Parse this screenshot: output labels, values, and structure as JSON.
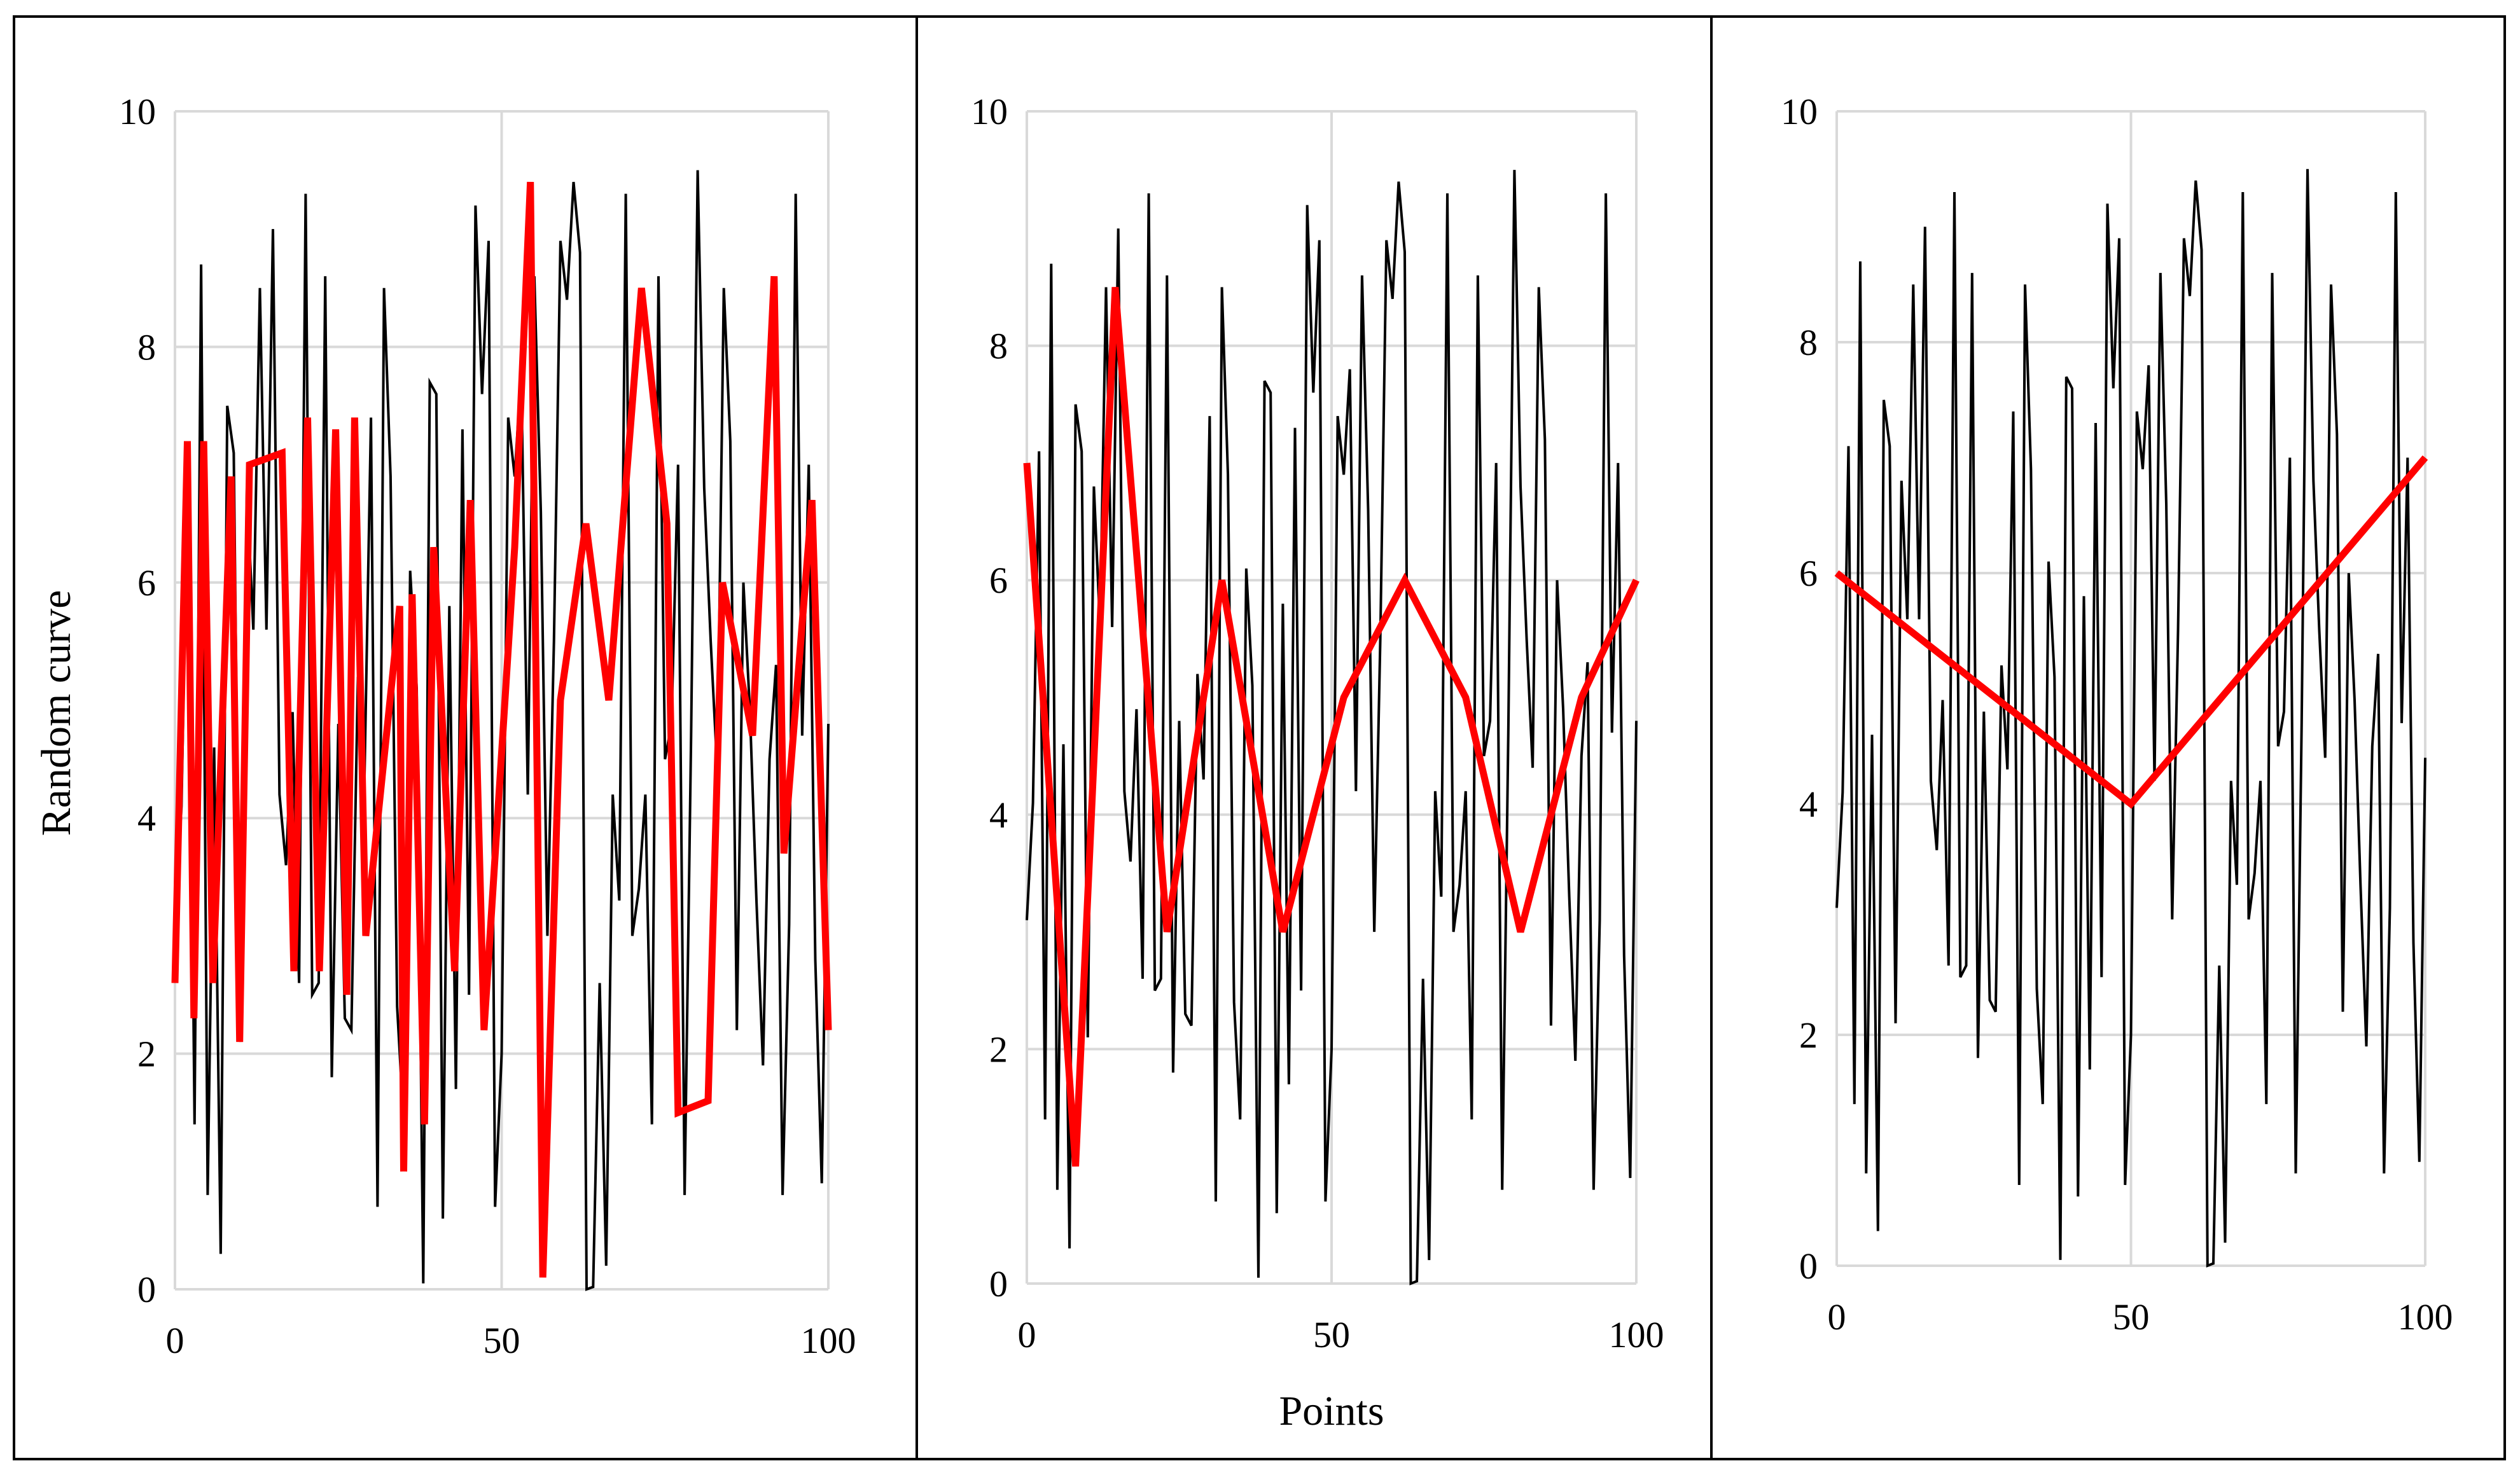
{
  "chart_data": [
    {
      "type": "line",
      "xlabel": "",
      "ylabel": "Random curve",
      "xlim": [
        0,
        100
      ],
      "ylim": [
        0,
        10
      ],
      "x_ticks": [
        "0",
        "50",
        "100"
      ],
      "y_ticks": [
        "0",
        "2",
        "4",
        "6",
        "8",
        "10"
      ],
      "grid": true,
      "series": [
        {
          "color": "#000000",
          "x": [
            0,
            1,
            2,
            3,
            4,
            5,
            6,
            7,
            8,
            9,
            10,
            11,
            12,
            13,
            14,
            15,
            16,
            17,
            18,
            19,
            20,
            21,
            22,
            23,
            24,
            25,
            26,
            27,
            28,
            29,
            30,
            31,
            32,
            33,
            34,
            35,
            36,
            37,
            38,
            39,
            40,
            41,
            42,
            43,
            44,
            45,
            46,
            47,
            48,
            49,
            50,
            51,
            52,
            53,
            54,
            55,
            56,
            57,
            58,
            59,
            60,
            61,
            62,
            63,
            64,
            65,
            66,
            67,
            68,
            69,
            70,
            71,
            72,
            73,
            74,
            75,
            76,
            77,
            78,
            79,
            80,
            81,
            82,
            83,
            84,
            85,
            86,
            87,
            88,
            89,
            90,
            91,
            92,
            93,
            94,
            95,
            96,
            97,
            98,
            99,
            100
          ],
          "values": [
            3.1,
            4.1,
            7.1,
            1.4,
            8.7,
            0.8,
            4.6,
            0.3,
            7.5,
            7.1,
            2.1,
            6.8,
            5.6,
            8.5,
            5.6,
            9.0,
            4.2,
            3.6,
            4.9,
            2.6,
            9.3,
            2.5,
            2.6,
            8.6,
            1.8,
            4.8,
            2.3,
            2.2,
            5.2,
            4.3,
            7.4,
            0.7,
            8.5,
            6.9,
            2.4,
            1.4,
            6.1,
            5.1,
            0.05,
            7.7,
            7.6,
            0.6,
            5.8,
            1.7,
            7.3,
            2.5,
            9.2,
            7.6,
            8.9,
            0.7,
            2.0,
            7.4,
            6.9,
            7.8,
            4.2,
            8.6,
            6.6,
            3.0,
            5.5,
            8.9,
            8.4,
            9.4,
            8.8,
            0.0,
            0.02,
            2.6,
            0.2,
            4.2,
            3.3,
            9.3,
            3.0,
            3.4,
            4.2,
            1.4,
            8.6,
            4.5,
            4.8,
            7.0,
            0.8,
            4.7,
            9.5,
            6.8,
            5.5,
            4.4,
            8.5,
            7.2,
            2.2,
            6.0,
            4.9,
            3.3,
            1.9,
            4.5,
            5.3,
            0.8,
            3.1,
            9.3,
            4.7,
            7.0,
            2.8,
            0.9,
            4.8
          ],
          "x_note": "",
          "y_note": ""
        },
        {
          "color": "#ff0000",
          "x": [
            0,
            1.9,
            2.9,
            4.4,
            5.8,
            8.6,
            9.9,
            11.4,
            16.4,
            18.2,
            20.3,
            22.1,
            24.6,
            26.3,
            27.5,
            29.2,
            34.4,
            35.0,
            36.3,
            38.2,
            39.6,
            42.8,
            45.2,
            47.3,
            52.0,
            54.4,
            56.3,
            59.0,
            62.9,
            66.4,
            71.4,
            75.3,
            77.0,
            81.6,
            83.8,
            88.4,
            91.7,
            93.2,
            97.5,
            100
          ],
          "values": [
            2.6,
            7.2,
            2.3,
            7.2,
            2.6,
            6.9,
            2.1,
            7.0,
            7.1,
            2.7,
            7.4,
            2.7,
            7.3,
            2.5,
            7.4,
            3.0,
            5.8,
            1.0,
            5.9,
            1.4,
            6.3,
            2.7,
            6.7,
            2.2,
            6.3,
            9.4,
            0.1,
            5.0,
            6.5,
            5.0,
            8.5,
            6.5,
            1.5,
            1.6,
            6.0,
            4.7,
            8.6,
            3.7,
            6.7,
            2.2
          ]
        }
      ]
    },
    {
      "type": "line",
      "xlabel": "Points",
      "ylabel": "",
      "xlim": [
        0,
        100
      ],
      "ylim": [
        0,
        10
      ],
      "x_ticks": [
        "0",
        "50",
        "100"
      ],
      "y_ticks": [
        "0",
        "2",
        "4",
        "6",
        "8",
        "10"
      ],
      "grid": true,
      "series": [
        {
          "color": "#000000",
          "same_as": "panel-1-black",
          "x": [
            0,
            1,
            2,
            3,
            4,
            5,
            6,
            7,
            8,
            9,
            10,
            11,
            12,
            13,
            14,
            15,
            16,
            17,
            18,
            19,
            20,
            21,
            22,
            23,
            24,
            25,
            26,
            27,
            28,
            29,
            30,
            31,
            32,
            33,
            34,
            35,
            36,
            37,
            38,
            39,
            40,
            41,
            42,
            43,
            44,
            45,
            46,
            47,
            48,
            49,
            50,
            51,
            52,
            53,
            54,
            55,
            56,
            57,
            58,
            59,
            60,
            61,
            62,
            63,
            64,
            65,
            66,
            67,
            68,
            69,
            70,
            71,
            72,
            73,
            74,
            75,
            76,
            77,
            78,
            79,
            80,
            81,
            82,
            83,
            84,
            85,
            86,
            87,
            88,
            89,
            90,
            91,
            92,
            93,
            94,
            95,
            96,
            97,
            98,
            99,
            100
          ],
          "values": [
            3.1,
            4.1,
            7.1,
            1.4,
            8.7,
            0.8,
            4.6,
            0.3,
            7.5,
            7.1,
            2.1,
            6.8,
            5.6,
            8.5,
            5.6,
            9.0,
            4.2,
            3.6,
            4.9,
            2.6,
            9.3,
            2.5,
            2.6,
            8.6,
            1.8,
            4.8,
            2.3,
            2.2,
            5.2,
            4.3,
            7.4,
            0.7,
            8.5,
            6.9,
            2.4,
            1.4,
            6.1,
            5.1,
            0.05,
            7.7,
            7.6,
            0.6,
            5.8,
            1.7,
            7.3,
            2.5,
            9.2,
            7.6,
            8.9,
            0.7,
            2.0,
            7.4,
            6.9,
            7.8,
            4.2,
            8.6,
            6.6,
            3.0,
            5.5,
            8.9,
            8.4,
            9.4,
            8.8,
            0.0,
            0.02,
            2.6,
            0.2,
            4.2,
            3.3,
            9.3,
            3.0,
            3.4,
            4.2,
            1.4,
            8.6,
            4.5,
            4.8,
            7.0,
            0.8,
            4.7,
            9.5,
            6.8,
            5.5,
            4.4,
            8.5,
            7.2,
            2.2,
            6.0,
            4.9,
            3.3,
            1.9,
            4.5,
            5.3,
            0.8,
            3.1,
            9.3,
            4.7,
            7.0,
            2.8,
            0.9,
            4.8
          ]
        },
        {
          "color": "#ff0000",
          "x": [
            0,
            8,
            14.5,
            23,
            32,
            42,
            52,
            62,
            72,
            81,
            91,
            100
          ],
          "values": [
            7.0,
            1.0,
            8.5,
            3.0,
            6.0,
            3.0,
            5.0,
            6.0,
            5.0,
            3.0,
            5.0,
            6.0
          ]
        }
      ]
    },
    {
      "type": "line",
      "xlabel": "",
      "ylabel": "",
      "xlim": [
        0,
        100
      ],
      "ylim": [
        0,
        10
      ],
      "x_ticks": [
        "0",
        "50",
        "100"
      ],
      "y_ticks": [
        "0",
        "2",
        "4",
        "6",
        "8",
        "10"
      ],
      "grid": true,
      "series": [
        {
          "color": "#000000",
          "x": [
            0,
            1,
            2,
            3,
            4,
            5,
            6,
            7,
            8,
            9,
            10,
            11,
            12,
            13,
            14,
            15,
            16,
            17,
            18,
            19,
            20,
            21,
            22,
            23,
            24,
            25,
            26,
            27,
            28,
            29,
            30,
            31,
            32,
            33,
            34,
            35,
            36,
            37,
            38,
            39,
            40,
            41,
            42,
            43,
            44,
            45,
            46,
            47,
            48,
            49,
            50,
            51,
            52,
            53,
            54,
            55,
            56,
            57,
            58,
            59,
            60,
            61,
            62,
            63,
            64,
            65,
            66,
            67,
            68,
            69,
            70,
            71,
            72,
            73,
            74,
            75,
            76,
            77,
            78,
            79,
            80,
            81,
            82,
            83,
            84,
            85,
            86,
            87,
            88,
            89,
            90,
            91,
            92,
            93,
            94,
            95,
            96,
            97,
            98,
            99,
            100
          ],
          "values": [
            3.1,
            4.1,
            7.1,
            1.4,
            8.7,
            0.8,
            4.6,
            0.3,
            7.5,
            7.1,
            2.1,
            6.8,
            5.6,
            8.5,
            5.6,
            9.0,
            4.2,
            3.6,
            4.9,
            2.6,
            9.3,
            2.5,
            2.6,
            8.6,
            1.8,
            4.8,
            2.3,
            2.2,
            5.2,
            4.3,
            7.4,
            0.7,
            8.5,
            6.9,
            2.4,
            1.4,
            6.1,
            5.1,
            0.05,
            7.7,
            7.6,
            0.6,
            5.8,
            1.7,
            7.3,
            2.5,
            9.2,
            7.6,
            8.9,
            0.7,
            2.0,
            7.4,
            6.9,
            7.8,
            4.2,
            8.6,
            6.6,
            3.0,
            5.5,
            8.9,
            8.4,
            9.4,
            8.8,
            0.0,
            0.02,
            2.6,
            0.2,
            4.2,
            3.3,
            9.3,
            3.0,
            3.4,
            4.2,
            1.4,
            8.6,
            4.5,
            4.8,
            7.0,
            0.8,
            4.7,
            9.5,
            6.8,
            5.5,
            4.4,
            8.5,
            7.2,
            2.2,
            6.0,
            4.9,
            3.3,
            1.9,
            4.5,
            5.3,
            0.8,
            3.1,
            9.3,
            4.7,
            7.0,
            2.8,
            0.9,
            4.4
          ]
        },
        {
          "color": "#ff0000",
          "x": [
            0,
            50,
            100
          ],
          "values": [
            6.0,
            4.0,
            7.0
          ]
        }
      ]
    }
  ]
}
